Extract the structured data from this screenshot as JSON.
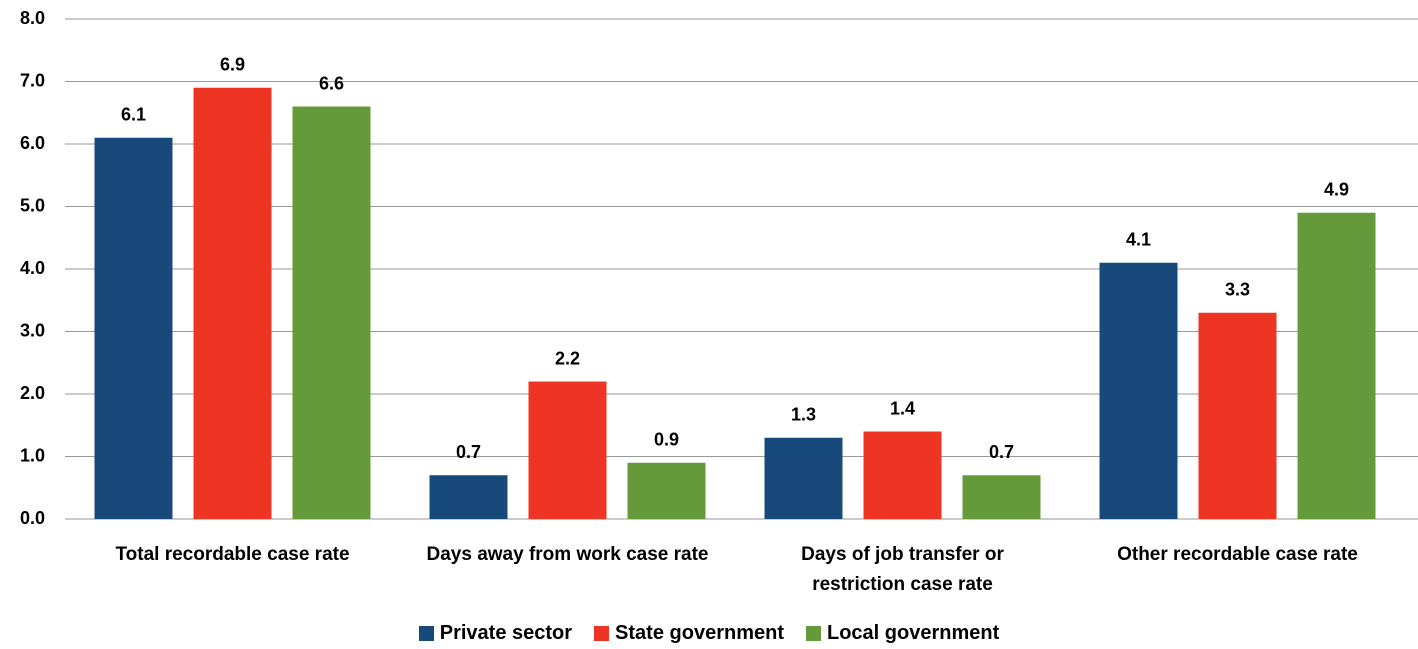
{
  "chart_data": {
    "type": "bar",
    "categories": [
      "Total recordable case rate",
      "Days away from work case rate",
      "Days of job transfer or restriction case rate",
      "Other recordable case rate"
    ],
    "series": [
      {
        "name": "Private sector",
        "color": "#17497a",
        "values": [
          6.1,
          0.7,
          1.3,
          4.1
        ]
      },
      {
        "name": "State government",
        "color": "#ee3524",
        "values": [
          6.9,
          2.2,
          1.4,
          3.3
        ]
      },
      {
        "name": "Local government",
        "color": "#659a3a",
        "values": [
          6.6,
          0.9,
          0.7,
          4.9
        ]
      }
    ],
    "ylim": [
      0,
      8
    ],
    "yticks": [
      {
        "value": 0,
        "label": "0.0"
      },
      {
        "value": 1,
        "label": "1.0"
      },
      {
        "value": 2,
        "label": "2.0"
      },
      {
        "value": 3,
        "label": "3.0"
      },
      {
        "value": 4,
        "label": "4.0"
      },
      {
        "value": 5,
        "label": "5.0"
      },
      {
        "value": 6,
        "label": "6.0"
      },
      {
        "value": 7,
        "label": "7.0"
      },
      {
        "value": 8,
        "label": "8.0"
      }
    ],
    "grid": true,
    "legend": "bottom"
  }
}
